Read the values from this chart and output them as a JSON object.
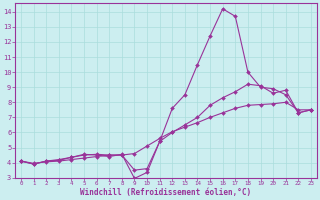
{
  "xlabel": "Windchill (Refroidissement éolien,°C)",
  "background_color": "#cceef0",
  "grid_color": "#aadddd",
  "line_color": "#993399",
  "xlim": [
    -0.5,
    23.5
  ],
  "ylim": [
    3.0,
    14.6
  ],
  "xticks": [
    0,
    1,
    2,
    3,
    4,
    5,
    6,
    7,
    8,
    9,
    10,
    11,
    12,
    13,
    14,
    15,
    16,
    17,
    18,
    19,
    20,
    21,
    22,
    23
  ],
  "yticks": [
    3,
    4,
    5,
    6,
    7,
    8,
    9,
    10,
    11,
    12,
    13,
    14
  ],
  "line1_x": [
    0,
    1,
    2,
    3,
    4,
    5,
    6,
    7,
    8,
    9,
    10,
    11,
    12,
    13,
    14,
    15,
    16,
    17,
    18,
    19,
    20,
    21,
    22,
    23
  ],
  "line1_y": [
    4.1,
    3.9,
    4.1,
    4.15,
    4.35,
    4.55,
    4.5,
    4.4,
    4.55,
    2.95,
    3.35,
    5.4,
    7.6,
    8.5,
    10.5,
    12.4,
    14.2,
    13.7,
    10.0,
    9.0,
    8.9,
    8.5,
    7.3,
    7.5
  ],
  "line2_x": [
    0,
    1,
    2,
    3,
    4,
    5,
    6,
    7,
    8,
    9,
    10,
    11,
    12,
    13,
    14,
    15,
    16,
    17,
    18,
    19,
    20,
    21,
    22,
    23
  ],
  "line2_y": [
    4.1,
    3.9,
    4.1,
    4.2,
    4.35,
    4.5,
    4.55,
    4.5,
    4.5,
    3.5,
    3.6,
    5.4,
    6.0,
    6.5,
    7.0,
    7.8,
    8.3,
    8.7,
    9.2,
    9.1,
    8.6,
    8.8,
    7.3,
    7.5
  ],
  "line3_x": [
    0,
    1,
    2,
    3,
    4,
    5,
    6,
    7,
    8,
    9,
    10,
    11,
    12,
    13,
    14,
    15,
    16,
    17,
    18,
    19,
    20,
    21,
    22,
    23
  ],
  "line3_y": [
    4.1,
    3.95,
    4.05,
    4.1,
    4.2,
    4.3,
    4.4,
    4.5,
    4.5,
    4.6,
    5.1,
    5.6,
    6.05,
    6.35,
    6.65,
    7.0,
    7.3,
    7.6,
    7.8,
    7.85,
    7.9,
    8.0,
    7.5,
    7.5
  ]
}
